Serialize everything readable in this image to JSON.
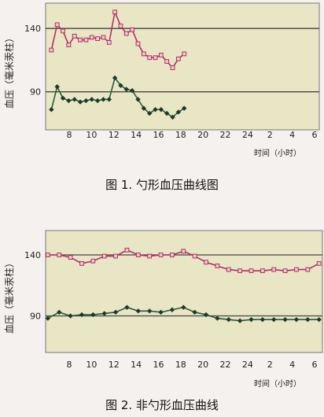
{
  "chart_data": [
    {
      "type": "line",
      "caption": "图 1. 勺形血压曲线图",
      "ylabel": "血压（毫米汞柱）",
      "xlabel": "时间（小时）",
      "ylim": [
        60,
        160
      ],
      "y_ticks": [
        140,
        90
      ],
      "x_ticks": [
        "8",
        "10",
        "12",
        "14",
        "16",
        "18",
        "20",
        "22",
        "24",
        "2",
        "4",
        "6"
      ],
      "reference_lines": [
        140,
        90
      ],
      "x": [
        7,
        7.5,
        8,
        8.5,
        9,
        9.5,
        10,
        10.5,
        11,
        11.5,
        12,
        12.5,
        13,
        13.5,
        14,
        14.5,
        15,
        15.5,
        16,
        16.5,
        17,
        17.5,
        18,
        18.5,
        19,
        19.5,
        20
      ],
      "series": [
        {
          "values": [
            123,
            143,
            138,
            127,
            134,
            131,
            131,
            133,
            132,
            133,
            129,
            153,
            142,
            136,
            139,
            128,
            120,
            117,
            117,
            119,
            114,
            109,
            116,
            120,
            null,
            null,
            null
          ],
          "color": "#b03060"
        },
        {
          "values": [
            76,
            94,
            85,
            83,
            84,
            82,
            83,
            84,
            83,
            84,
            84,
            101,
            95,
            92,
            91,
            84,
            77,
            73,
            76,
            76,
            73,
            70,
            74,
            77,
            null,
            null,
            null
          ],
          "color": "#2a5a3a"
        }
      ]
    },
    {
      "type": "line",
      "caption": "图 2. 非勺形血压曲线",
      "ylabel": "血压（毫米汞柱）",
      "xlabel": "时间（小时）",
      "ylim": [
        60,
        160
      ],
      "y_ticks": [
        140,
        90
      ],
      "x_ticks": [
        "8",
        "10",
        "12",
        "14",
        "16",
        "18",
        "20",
        "22",
        "24",
        "2",
        "4",
        "6"
      ],
      "reference_lines": [
        140,
        90
      ],
      "x": [
        6,
        7,
        8,
        9,
        10,
        11,
        12,
        13,
        14,
        15,
        16,
        17,
        18,
        19,
        20,
        21,
        22,
        23,
        24,
        25,
        26,
        27,
        28,
        29,
        30
      ],
      "series": [
        {
          "values": [
            140,
            140,
            138,
            133,
            135,
            139,
            139,
            144,
            140,
            139,
            140,
            140,
            143,
            139,
            134,
            131,
            128,
            127,
            127,
            127,
            128,
            127,
            128,
            128,
            133
          ],
          "color": "#b03060"
        },
        {
          "values": [
            88,
            93,
            90,
            91,
            91,
            92,
            93,
            97,
            94,
            94,
            93,
            95,
            97,
            93,
            91,
            88,
            87,
            86,
            87,
            87,
            87,
            87,
            87,
            87,
            87
          ],
          "color": "#2a5a3a"
        }
      ]
    }
  ]
}
